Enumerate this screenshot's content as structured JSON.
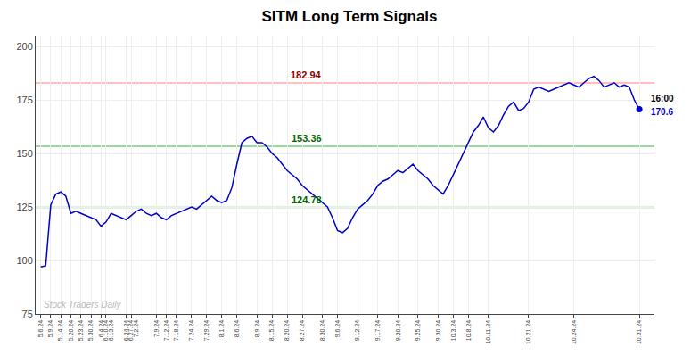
{
  "chart_data": {
    "type": "line",
    "title": "SITM Long Term Signals",
    "categories": [
      "5.6.24",
      null,
      "5.9.24",
      null,
      "5.14.24",
      null,
      "5.20.24",
      null,
      "5.23.24",
      null,
      "5.30.24",
      null,
      "6.4.24",
      "6.10.24",
      "6.13.24",
      null,
      null,
      "6.24.24",
      "6.27.24",
      "7.2.24",
      null,
      null,
      null,
      "7.9.24",
      null,
      "7.12.24",
      null,
      "7.18.24",
      null,
      null,
      "7.24.24",
      null,
      null,
      "7.29.24",
      null,
      null,
      "8.1.24",
      null,
      null,
      "8.6.24",
      null,
      null,
      null,
      "8.9.24",
      null,
      null,
      "8.15.24",
      null,
      null,
      "8.20.24",
      null,
      null,
      "8.27.24",
      null,
      null,
      null,
      "8.30.24",
      null,
      null,
      "9.6.24",
      null,
      null,
      null,
      "9.12.24",
      null,
      null,
      null,
      "9.17.24",
      null,
      null,
      null,
      "9.20.24",
      null,
      null,
      null,
      "9.25.24",
      null,
      null,
      null,
      "9.30.24",
      null,
      null,
      "10.3.24",
      null,
      null,
      "10.8.24",
      null,
      null,
      null,
      "10.11.24",
      null,
      null,
      null,
      null,
      null,
      null,
      null,
      "10.21.24",
      null,
      null,
      null,
      null,
      null,
      null,
      null,
      null,
      "10.24.24",
      null,
      null,
      null,
      null,
      null,
      null,
      null,
      null,
      null,
      null,
      null,
      null,
      "10.31.24"
    ],
    "values": [
      97,
      97.5,
      126,
      131,
      132,
      130,
      122,
      123,
      122,
      121,
      120,
      119,
      116,
      118,
      122,
      121,
      120,
      119,
      121,
      123,
      124,
      122,
      121,
      122,
      120,
      119,
      121,
      122,
      123,
      124,
      125,
      124,
      126,
      128,
      130,
      128,
      127,
      128,
      134,
      145,
      155,
      157,
      158,
      155,
      155,
      153,
      150,
      148,
      145,
      142,
      140,
      138,
      135,
      133,
      131,
      129,
      127,
      125,
      120,
      114,
      113,
      115,
      120,
      124,
      126,
      128,
      131,
      135,
      137,
      138,
      140,
      142,
      141,
      143,
      145,
      142,
      140,
      138,
      135,
      133,
      131,
      135,
      140,
      145,
      150,
      155,
      160,
      163,
      167,
      162,
      160,
      163,
      168,
      172,
      174,
      170,
      171,
      174,
      180,
      181,
      180,
      179,
      180,
      181,
      182,
      183,
      182,
      181,
      183,
      185,
      186,
      184,
      181,
      182,
      183,
      181,
      182,
      181,
      175,
      170.6
    ],
    "color": "#0000cc",
    "ylim": [
      75,
      205
    ],
    "yticks": [
      75,
      100,
      125,
      150,
      175,
      200
    ],
    "grid": true,
    "hlines": [
      {
        "value": 182.94,
        "color": "#ffaaaa",
        "label": "182.94",
        "label_color": "#880000"
      },
      {
        "value": 153.36,
        "color": "#77cc77",
        "label": "153.36",
        "label_color": "#006600"
      },
      {
        "value": 124.78,
        "color": "#77cc77",
        "label": "124.78",
        "label_color": "#006600"
      }
    ],
    "last_point_labels": [
      {
        "text": "16:00",
        "color": "#000000"
      },
      {
        "text": "170.6",
        "color": "#0000cc"
      }
    ],
    "watermark": {
      "text": "Stock Traders Daily",
      "color": "#bbbbbb"
    }
  }
}
